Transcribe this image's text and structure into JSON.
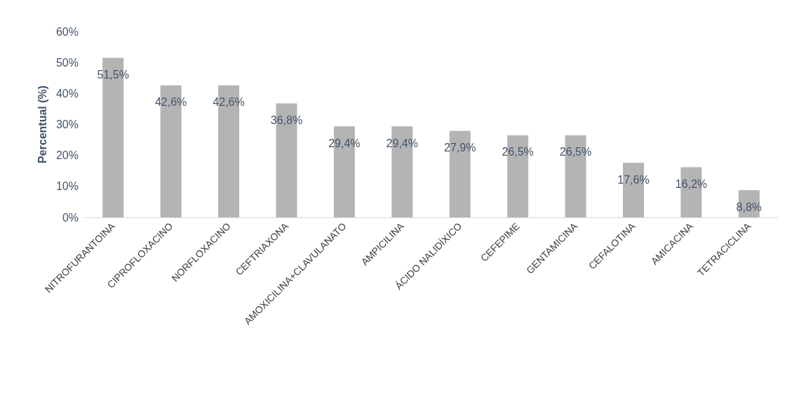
{
  "chart_data": {
    "type": "bar",
    "ylabel": "Percentual (%)",
    "categories": [
      "NITROFURANTOINA",
      "CIPROFLOXACINO",
      "NORFLOXACINO",
      "CEFTRIAXONA",
      "AMOXICILINA+CLAVULANATO",
      "AMPICILINA",
      "ÁCIDO NALIDÍXICO",
      "CEFEPIME",
      "GENTAMICINA",
      "CEFALOTINA",
      "AMICACINA",
      "TETRACICLINA"
    ],
    "values": [
      51.5,
      42.6,
      42.6,
      36.8,
      29.4,
      29.4,
      27.9,
      26.5,
      26.5,
      17.6,
      16.2,
      8.8
    ],
    "value_labels": [
      "51,5%",
      "42,6%",
      "42,6%",
      "36,8%",
      "29,4%",
      "29,4%",
      "27,9%",
      "26,5%",
      "26,5%",
      "17,6%",
      "16,2%",
      "8,8%"
    ],
    "color": "#b4b4b4",
    "ylim": [
      0,
      60
    ],
    "yticks": [
      {
        "value": 0,
        "label": "0%"
      },
      {
        "value": 10,
        "label": "10%"
      },
      {
        "value": 20,
        "label": "20%"
      },
      {
        "value": 30,
        "label": "30%"
      },
      {
        "value": 40,
        "label": "40%"
      },
      {
        "value": 50,
        "label": "50%"
      },
      {
        "value": 60,
        "label": "60%"
      }
    ],
    "grid": false
  }
}
